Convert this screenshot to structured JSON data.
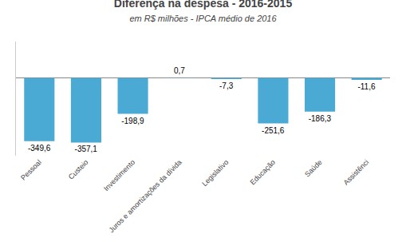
{
  "chart_data": {
    "type": "bar",
    "title": "Diferença na despesa - 2016-2015",
    "subtitle": "em R$ milhões - IPCA médio de 2016",
    "categories": [
      "Pessoal",
      "Custeio",
      "Investimento",
      "Juros e amortizações da dívida",
      "Legislativo",
      "Educação",
      "Saúde",
      "Assistênci"
    ],
    "values": [
      -349.6,
      -357.1,
      -198.9,
      0.7,
      -7.3,
      -251.6,
      -186.3,
      -11.6
    ],
    "value_labels": [
      "-349,6",
      "-357,1",
      "-198,9",
      "0,7",
      "-7,3",
      "-251,6",
      "-186,3",
      "-11,6"
    ],
    "color": "#4baad3",
    "ylim": [
      -430,
      200
    ],
    "yticks": [],
    "grid": false,
    "data_labels": true,
    "tick_labels": "x"
  }
}
